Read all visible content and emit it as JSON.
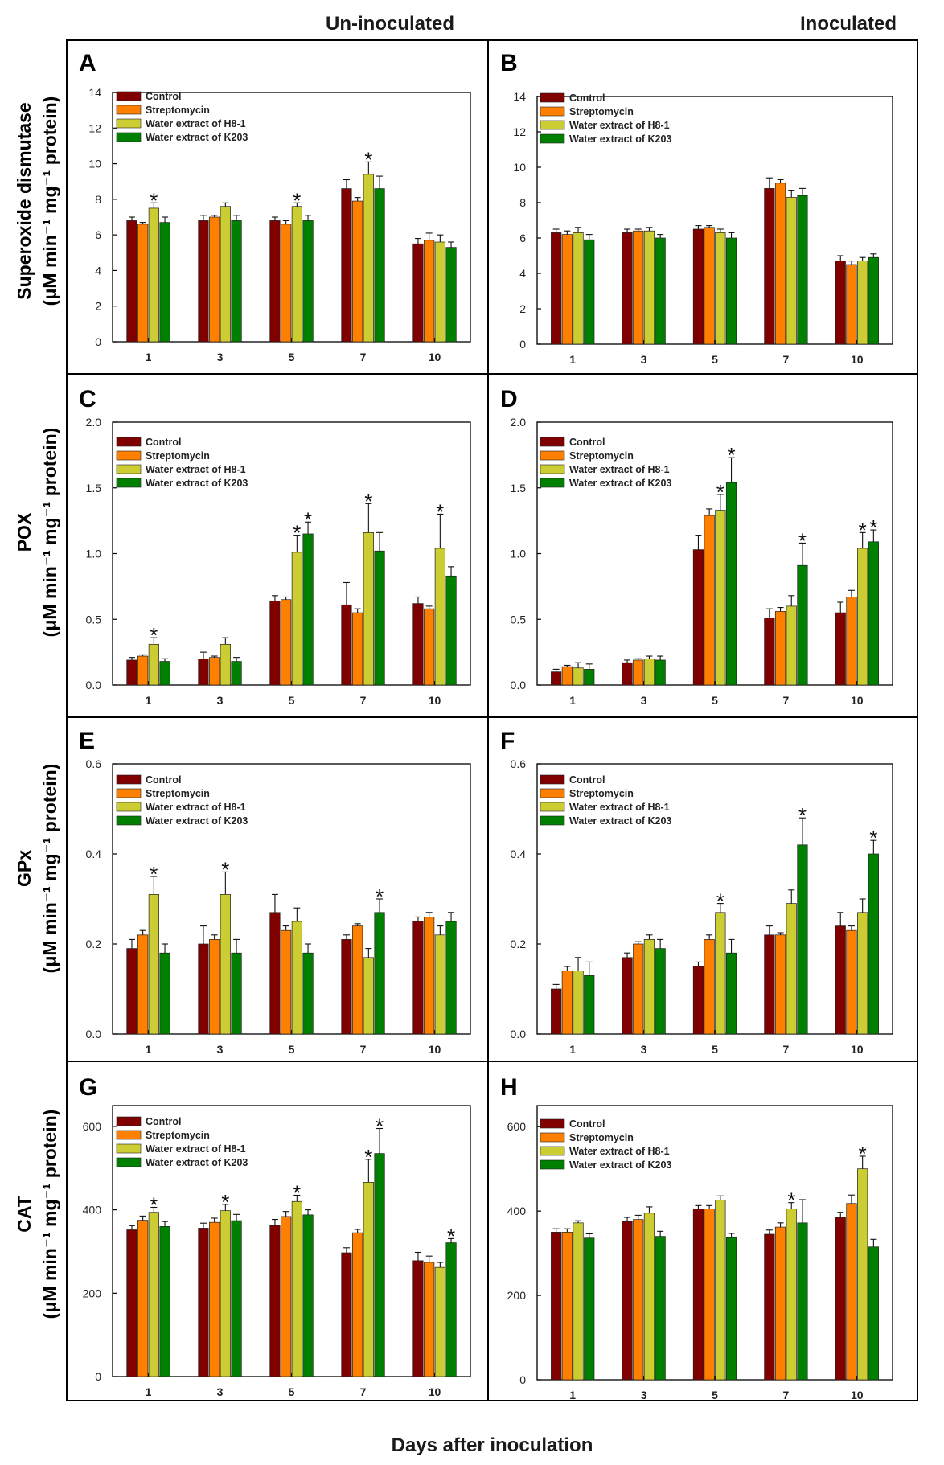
{
  "column_headers": [
    "Un-inoculated",
    "Inoculated"
  ],
  "x_title": "Days after inoculation",
  "legend": [
    "Control",
    "Streptomycin",
    "Water extract of H8-1",
    "Water extract of K203"
  ],
  "series_colors": [
    "#800000",
    "#ff8000",
    "#cccc33",
    "#008000"
  ],
  "row_labels": [
    [
      "Superoxide  dismutase",
      "(μM min⁻¹ mg⁻¹ protein)"
    ],
    [
      "POX",
      "(μM min⁻¹ mg⁻¹ protein)"
    ],
    [
      "GPx",
      "(μM min⁻¹ mg⁻¹ protein)"
    ],
    [
      "CAT",
      "(μM min⁻¹ mg⁻¹ protein)"
    ]
  ],
  "chart_data": [
    {
      "panel": "A",
      "type": "bar",
      "categories": [
        "1",
        "3",
        "5",
        "7",
        "10"
      ],
      "ylim": [
        0,
        14
      ],
      "yticks": [
        "0",
        "2",
        "4",
        "6",
        "8",
        "10",
        "12",
        "14"
      ],
      "series": [
        {
          "name": "Control",
          "values": [
            6.8,
            6.8,
            6.8,
            8.6,
            5.5
          ],
          "errors": [
            0.2,
            0.3,
            0.2,
            0.5,
            0.3
          ]
        },
        {
          "name": "Streptomycin",
          "values": [
            6.6,
            7.0,
            6.6,
            7.9,
            5.7
          ],
          "errors": [
            0.1,
            0.1,
            0.2,
            0.2,
            0.4
          ]
        },
        {
          "name": "Water extract of H8-1",
          "values": [
            7.5,
            7.6,
            7.6,
            9.4,
            5.6
          ],
          "errors": [
            0.3,
            0.2,
            0.2,
            0.7,
            0.4
          ]
        },
        {
          "name": "Water extract of K203",
          "values": [
            6.7,
            6.8,
            6.8,
            8.6,
            5.3
          ],
          "errors": [
            0.3,
            0.3,
            0.3,
            0.7,
            0.3
          ]
        }
      ],
      "significant": [
        [
          0,
          2
        ],
        [
          2,
          2
        ],
        [
          3,
          2
        ]
      ]
    },
    {
      "panel": "B",
      "type": "bar",
      "categories": [
        "1",
        "3",
        "5",
        "7",
        "10"
      ],
      "ylim": [
        0,
        14
      ],
      "yticks": [
        "0",
        "2",
        "4",
        "6",
        "8",
        "10",
        "12",
        "14"
      ],
      "series": [
        {
          "name": "Control",
          "values": [
            6.3,
            6.3,
            6.5,
            8.8,
            4.7
          ],
          "errors": [
            0.2,
            0.2,
            0.2,
            0.6,
            0.3
          ]
        },
        {
          "name": "Streptomycin",
          "values": [
            6.2,
            6.4,
            6.6,
            9.1,
            4.5
          ],
          "errors": [
            0.2,
            0.1,
            0.1,
            0.2,
            0.2
          ]
        },
        {
          "name": "Water extract of H8-1",
          "values": [
            6.3,
            6.4,
            6.3,
            8.3,
            4.7
          ],
          "errors": [
            0.3,
            0.2,
            0.2,
            0.4,
            0.2
          ]
        },
        {
          "name": "Water extract of K203",
          "values": [
            5.9,
            6.0,
            6.0,
            8.4,
            4.9
          ],
          "errors": [
            0.3,
            0.2,
            0.3,
            0.4,
            0.2
          ]
        }
      ],
      "significant": []
    },
    {
      "panel": "C",
      "type": "bar",
      "categories": [
        "1",
        "3",
        "5",
        "7",
        "10"
      ],
      "ylim": [
        0,
        2.0
      ],
      "yticks": [
        "0.0",
        "0.5",
        "1.0",
        "1.5",
        "2.0"
      ],
      "series": [
        {
          "name": "Control",
          "values": [
            0.19,
            0.2,
            0.64,
            0.61,
            0.62
          ],
          "errors": [
            0.02,
            0.05,
            0.04,
            0.17,
            0.05
          ]
        },
        {
          "name": "Streptomycin",
          "values": [
            0.22,
            0.21,
            0.65,
            0.55,
            0.58
          ],
          "errors": [
            0.01,
            0.01,
            0.02,
            0.03,
            0.02
          ]
        },
        {
          "name": "Water extract of H8-1",
          "values": [
            0.31,
            0.31,
            1.01,
            1.16,
            1.04
          ],
          "errors": [
            0.05,
            0.05,
            0.13,
            0.22,
            0.26
          ]
        },
        {
          "name": "Water extract of K203",
          "values": [
            0.18,
            0.18,
            1.15,
            1.02,
            0.83
          ],
          "errors": [
            0.02,
            0.03,
            0.09,
            0.14,
            0.07
          ]
        }
      ],
      "significant": [
        [
          0,
          2
        ],
        [
          2,
          2
        ],
        [
          2,
          3
        ],
        [
          3,
          2
        ],
        [
          4,
          2
        ]
      ]
    },
    {
      "panel": "D",
      "type": "bar",
      "categories": [
        "1",
        "3",
        "5",
        "7",
        "10"
      ],
      "ylim": [
        0,
        2.0
      ],
      "yticks": [
        "0.0",
        "0.5",
        "1.0",
        "1.5",
        "2.0"
      ],
      "series": [
        {
          "name": "Control",
          "values": [
            0.1,
            0.17,
            1.03,
            0.51,
            0.55
          ],
          "errors": [
            0.02,
            0.02,
            0.11,
            0.07,
            0.08
          ]
        },
        {
          "name": "Streptomycin",
          "values": [
            0.14,
            0.19,
            1.29,
            0.56,
            0.67
          ],
          "errors": [
            0.01,
            0.01,
            0.05,
            0.03,
            0.05
          ]
        },
        {
          "name": "Water extract of H8-1",
          "values": [
            0.13,
            0.2,
            1.33,
            0.6,
            1.04
          ],
          "errors": [
            0.04,
            0.02,
            0.12,
            0.08,
            0.12
          ]
        },
        {
          "name": "Water extract of K203",
          "values": [
            0.12,
            0.19,
            1.54,
            0.91,
            1.09
          ],
          "errors": [
            0.04,
            0.03,
            0.19,
            0.17,
            0.09
          ]
        }
      ],
      "significant": [
        [
          2,
          2
        ],
        [
          2,
          3
        ],
        [
          3,
          3
        ],
        [
          4,
          2
        ],
        [
          4,
          3
        ]
      ]
    },
    {
      "panel": "E",
      "type": "bar",
      "categories": [
        "1",
        "3",
        "5",
        "7",
        "10"
      ],
      "ylim": [
        0,
        0.6
      ],
      "yticks": [
        "0.0",
        "0.2",
        "0.4",
        "0.6"
      ],
      "series": [
        {
          "name": "Control",
          "values": [
            0.19,
            0.2,
            0.27,
            0.21,
            0.25
          ],
          "errors": [
            0.02,
            0.04,
            0.04,
            0.01,
            0.01
          ]
        },
        {
          "name": "Streptomycin",
          "values": [
            0.22,
            0.21,
            0.23,
            0.24,
            0.26
          ],
          "errors": [
            0.01,
            0.01,
            0.01,
            0.005,
            0.01
          ]
        },
        {
          "name": "Water extract of H8-1",
          "values": [
            0.31,
            0.31,
            0.25,
            0.17,
            0.22
          ],
          "errors": [
            0.04,
            0.05,
            0.03,
            0.02,
            0.02
          ]
        },
        {
          "name": "Water extract of K203",
          "values": [
            0.18,
            0.18,
            0.18,
            0.27,
            0.25
          ],
          "errors": [
            0.02,
            0.03,
            0.02,
            0.03,
            0.02
          ]
        }
      ],
      "significant": [
        [
          0,
          2
        ],
        [
          1,
          2
        ],
        [
          3,
          3
        ]
      ]
    },
    {
      "panel": "F",
      "type": "bar",
      "categories": [
        "1",
        "3",
        "5",
        "7",
        "10"
      ],
      "ylim": [
        0,
        0.6
      ],
      "yticks": [
        "0.0",
        "0.2",
        "0.4",
        "0.6"
      ],
      "series": [
        {
          "name": "Control",
          "values": [
            0.1,
            0.17,
            0.15,
            0.22,
            0.24
          ],
          "errors": [
            0.01,
            0.01,
            0.01,
            0.02,
            0.03
          ]
        },
        {
          "name": "Streptomycin",
          "values": [
            0.14,
            0.2,
            0.21,
            0.22,
            0.23
          ],
          "errors": [
            0.01,
            0.005,
            0.01,
            0.005,
            0.01
          ]
        },
        {
          "name": "Water extract of H8-1",
          "values": [
            0.14,
            0.21,
            0.27,
            0.29,
            0.27
          ],
          "errors": [
            0.03,
            0.01,
            0.02,
            0.03,
            0.03
          ]
        },
        {
          "name": "Water extract of K203",
          "values": [
            0.13,
            0.19,
            0.18,
            0.42,
            0.4
          ],
          "errors": [
            0.03,
            0.02,
            0.03,
            0.06,
            0.03
          ]
        }
      ],
      "significant": [
        [
          2,
          2
        ],
        [
          3,
          3
        ],
        [
          4,
          3
        ]
      ]
    },
    {
      "panel": "G",
      "type": "bar",
      "categories": [
        "1",
        "3",
        "5",
        "7",
        "10"
      ],
      "ylim": [
        0,
        650
      ],
      "yticks": [
        "0",
        "200",
        "400",
        "600"
      ],
      "series": [
        {
          "name": "Control",
          "values": [
            352,
            356,
            362,
            297,
            278
          ],
          "errors": [
            10,
            12,
            15,
            12,
            20
          ]
        },
        {
          "name": "Streptomycin",
          "values": [
            375,
            370,
            384,
            345,
            274
          ],
          "errors": [
            10,
            10,
            12,
            8,
            15
          ]
        },
        {
          "name": "Water extract of H8-1",
          "values": [
            394,
            398,
            420,
            466,
            262
          ],
          "errors": [
            12,
            15,
            15,
            55,
            12
          ]
        },
        {
          "name": "Water extract of K203",
          "values": [
            360,
            374,
            388,
            535,
            321
          ],
          "errors": [
            12,
            15,
            12,
            60,
            10
          ]
        }
      ],
      "significant": [
        [
          0,
          2
        ],
        [
          1,
          2
        ],
        [
          2,
          2
        ],
        [
          3,
          2
        ],
        [
          3,
          3
        ],
        [
          4,
          3
        ]
      ]
    },
    {
      "panel": "H",
      "type": "bar",
      "categories": [
        "1",
        "3",
        "5",
        "7",
        "10"
      ],
      "ylim": [
        0,
        650
      ],
      "yticks": [
        "0",
        "200",
        "400",
        "600"
      ],
      "series": [
        {
          "name": "Control",
          "values": [
            350,
            375,
            405,
            345,
            385
          ],
          "errors": [
            8,
            10,
            8,
            10,
            12
          ]
        },
        {
          "name": "Streptomycin",
          "values": [
            350,
            380,
            405,
            362,
            418
          ],
          "errors": [
            8,
            10,
            8,
            10,
            20
          ]
        },
        {
          "name": "Water extract of H8-1",
          "values": [
            372,
            395,
            426,
            405,
            500
          ],
          "errors": [
            5,
            15,
            10,
            15,
            30
          ]
        },
        {
          "name": "Water extract of K203",
          "values": [
            336,
            340,
            337,
            372,
            315
          ],
          "errors": [
            10,
            12,
            10,
            55,
            18
          ]
        }
      ],
      "significant": [
        [
          3,
          2
        ],
        [
          4,
          2
        ]
      ]
    }
  ]
}
